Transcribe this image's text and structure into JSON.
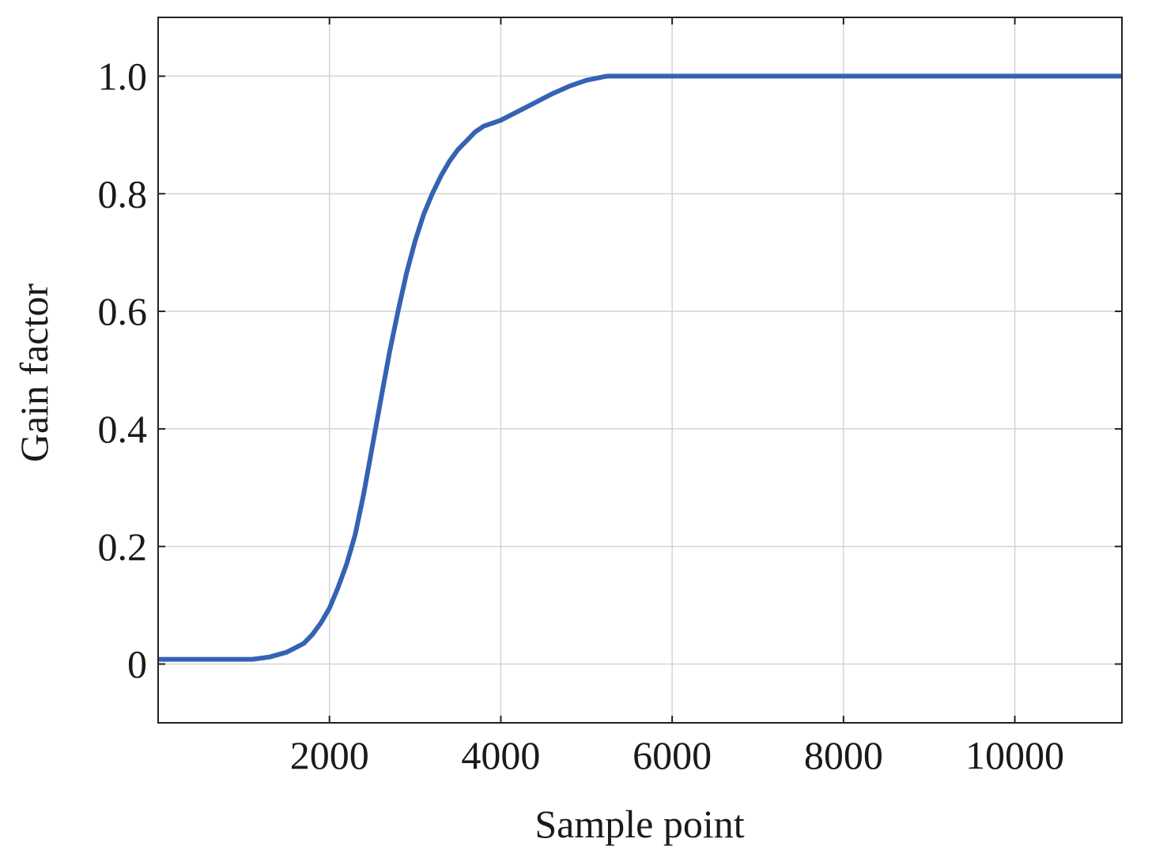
{
  "chart_data": {
    "type": "line",
    "title": "",
    "xlabel": "Sample point",
    "ylabel": "Gain factor",
    "xlim": [
      0,
      11250
    ],
    "ylim": [
      -0.1,
      1.1
    ],
    "xticks": [
      2000,
      4000,
      6000,
      8000,
      10000
    ],
    "xtick_labels": [
      "2000",
      "4000",
      "6000",
      "8000",
      "10000"
    ],
    "yticks": [
      0,
      0.2,
      0.4,
      0.6,
      0.8,
      1.0
    ],
    "ytick_labels": [
      "0",
      "0.2",
      "0.4",
      "0.6",
      "0.8",
      "1.0"
    ],
    "grid": true,
    "series": [
      {
        "color": "#3563b3",
        "x": [
          0,
          1100,
          1300,
          1500,
          1700,
          1800,
          1900,
          2000,
          2100,
          2200,
          2300,
          2400,
          2500,
          2600,
          2700,
          2800,
          2900,
          3000,
          3100,
          3200,
          3300,
          3400,
          3500,
          3600,
          3700,
          3800,
          3900,
          4000,
          4200,
          4400,
          4600,
          4800,
          5000,
          5200,
          5250,
          6000,
          8000,
          10000,
          11250
        ],
        "y": [
          0.008,
          0.008,
          0.012,
          0.02,
          0.035,
          0.05,
          0.07,
          0.095,
          0.13,
          0.17,
          0.22,
          0.29,
          0.37,
          0.45,
          0.53,
          0.6,
          0.665,
          0.72,
          0.765,
          0.8,
          0.83,
          0.855,
          0.875,
          0.89,
          0.905,
          0.915,
          0.92,
          0.925,
          0.94,
          0.955,
          0.97,
          0.983,
          0.993,
          0.999,
          1.0,
          1.0,
          1.0,
          1.0,
          1.0
        ]
      }
    ]
  }
}
